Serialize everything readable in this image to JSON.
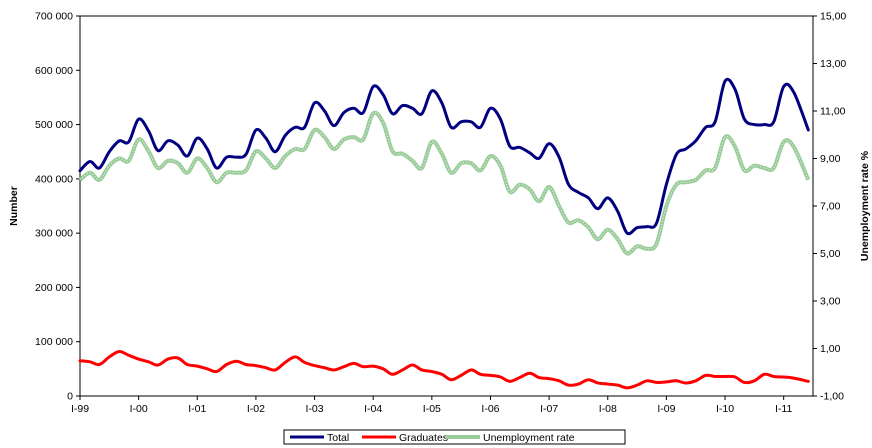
{
  "chart_data": {
    "type": "line",
    "ylabel": "Number",
    "y2label": "Unemployment rate %",
    "ylim": [
      0,
      700000
    ],
    "y2lim": [
      -1,
      15
    ],
    "x_start": 1999.0,
    "x_end": 2011.5,
    "left_ticks": [
      {
        "value": 0,
        "label": "0"
      },
      {
        "value": 100000,
        "label": "100 000"
      },
      {
        "value": 200000,
        "label": "200 000"
      },
      {
        "value": 300000,
        "label": "300 000"
      },
      {
        "value": 400000,
        "label": "400 000"
      },
      {
        "value": 500000,
        "label": "500 000"
      },
      {
        "value": 600000,
        "label": "600 000"
      },
      {
        "value": 700000,
        "label": "700 000"
      }
    ],
    "right_ticks": [
      {
        "value": -1,
        "label": "-1,00"
      },
      {
        "value": 1,
        "label": "1,00"
      },
      {
        "value": 3,
        "label": "3,00"
      },
      {
        "value": 5,
        "label": "5,00"
      },
      {
        "value": 7,
        "label": "7,00"
      },
      {
        "value": 9,
        "label": "9,00"
      },
      {
        "value": 11,
        "label": "11,00"
      },
      {
        "value": 13,
        "label": "13,00"
      },
      {
        "value": 15,
        "label": "15,00"
      }
    ],
    "x_ticks": [
      {
        "value": 1999,
        "label": "I-99"
      },
      {
        "value": 2000,
        "label": "I-00"
      },
      {
        "value": 2001,
        "label": "I-01"
      },
      {
        "value": 2002,
        "label": "I-02"
      },
      {
        "value": 2003,
        "label": "I-03"
      },
      {
        "value": 2004,
        "label": "I-04"
      },
      {
        "value": 2005,
        "label": "I-05"
      },
      {
        "value": 2006,
        "label": "I-06"
      },
      {
        "value": 2007,
        "label": "I-07"
      },
      {
        "value": 2008,
        "label": "I-08"
      },
      {
        "value": 2009,
        "label": "I-09"
      },
      {
        "value": 2010,
        "label": "I-10"
      },
      {
        "value": 2011,
        "label": "I-11"
      }
    ],
    "legend": {
      "placement": "bottom"
    },
    "series": [
      {
        "name": "Total",
        "axis": "left",
        "color": "#000080",
        "points": [
          [
            1999.0,
            415000
          ],
          [
            1999.17,
            432000
          ],
          [
            1999.33,
            420000
          ],
          [
            1999.5,
            450000
          ],
          [
            1999.67,
            470000
          ],
          [
            1999.83,
            468000
          ],
          [
            2000.0,
            510000
          ],
          [
            2000.17,
            488000
          ],
          [
            2000.33,
            452000
          ],
          [
            2000.5,
            470000
          ],
          [
            2000.67,
            462000
          ],
          [
            2000.83,
            442000
          ],
          [
            2001.0,
            475000
          ],
          [
            2001.17,
            455000
          ],
          [
            2001.33,
            420000
          ],
          [
            2001.5,
            440000
          ],
          [
            2001.67,
            440000
          ],
          [
            2001.83,
            445000
          ],
          [
            2002.0,
            490000
          ],
          [
            2002.17,
            475000
          ],
          [
            2002.33,
            450000
          ],
          [
            2002.5,
            480000
          ],
          [
            2002.67,
            495000
          ],
          [
            2002.83,
            495000
          ],
          [
            2003.0,
            540000
          ],
          [
            2003.17,
            525000
          ],
          [
            2003.33,
            498000
          ],
          [
            2003.5,
            522000
          ],
          [
            2003.67,
            530000
          ],
          [
            2003.83,
            522000
          ],
          [
            2004.0,
            570000
          ],
          [
            2004.17,
            555000
          ],
          [
            2004.33,
            520000
          ],
          [
            2004.5,
            535000
          ],
          [
            2004.67,
            530000
          ],
          [
            2004.83,
            520000
          ],
          [
            2005.0,
            562000
          ],
          [
            2005.17,
            540000
          ],
          [
            2005.33,
            495000
          ],
          [
            2005.5,
            505000
          ],
          [
            2005.67,
            505000
          ],
          [
            2005.83,
            495000
          ],
          [
            2006.0,
            530000
          ],
          [
            2006.17,
            510000
          ],
          [
            2006.33,
            460000
          ],
          [
            2006.5,
            458000
          ],
          [
            2006.67,
            448000
          ],
          [
            2006.83,
            438000
          ],
          [
            2007.0,
            465000
          ],
          [
            2007.17,
            440000
          ],
          [
            2007.33,
            390000
          ],
          [
            2007.5,
            375000
          ],
          [
            2007.67,
            365000
          ],
          [
            2007.83,
            345000
          ],
          [
            2008.0,
            365000
          ],
          [
            2008.17,
            340000
          ],
          [
            2008.33,
            300000
          ],
          [
            2008.5,
            310000
          ],
          [
            2008.67,
            312000
          ],
          [
            2008.83,
            318000
          ],
          [
            2009.0,
            390000
          ],
          [
            2009.17,
            445000
          ],
          [
            2009.33,
            455000
          ],
          [
            2009.5,
            470000
          ],
          [
            2009.67,
            495000
          ],
          [
            2009.83,
            505000
          ],
          [
            2010.0,
            580000
          ],
          [
            2010.17,
            565000
          ],
          [
            2010.33,
            510000
          ],
          [
            2010.5,
            500000
          ],
          [
            2010.67,
            500000
          ],
          [
            2010.83,
            505000
          ],
          [
            2011.0,
            570000
          ],
          [
            2011.17,
            560000
          ],
          [
            2011.42,
            490000
          ]
        ]
      },
      {
        "name": "Graduates",
        "axis": "left",
        "color": "#ff0000",
        "points": [
          [
            1999.0,
            65000
          ],
          [
            1999.17,
            63000
          ],
          [
            1999.33,
            58000
          ],
          [
            1999.5,
            72000
          ],
          [
            1999.67,
            82000
          ],
          [
            1999.83,
            75000
          ],
          [
            2000.0,
            68000
          ],
          [
            2000.17,
            63000
          ],
          [
            2000.33,
            57000
          ],
          [
            2000.5,
            68000
          ],
          [
            2000.67,
            70000
          ],
          [
            2000.83,
            58000
          ],
          [
            2001.0,
            55000
          ],
          [
            2001.17,
            50000
          ],
          [
            2001.33,
            45000
          ],
          [
            2001.5,
            58000
          ],
          [
            2001.67,
            64000
          ],
          [
            2001.83,
            58000
          ],
          [
            2002.0,
            56000
          ],
          [
            2002.17,
            52000
          ],
          [
            2002.33,
            48000
          ],
          [
            2002.5,
            62000
          ],
          [
            2002.67,
            72000
          ],
          [
            2002.83,
            62000
          ],
          [
            2003.0,
            56000
          ],
          [
            2003.17,
            52000
          ],
          [
            2003.33,
            48000
          ],
          [
            2003.5,
            54000
          ],
          [
            2003.67,
            60000
          ],
          [
            2003.83,
            54000
          ],
          [
            2004.0,
            55000
          ],
          [
            2004.17,
            50000
          ],
          [
            2004.33,
            40000
          ],
          [
            2004.5,
            48000
          ],
          [
            2004.67,
            57000
          ],
          [
            2004.83,
            48000
          ],
          [
            2005.0,
            45000
          ],
          [
            2005.17,
            40000
          ],
          [
            2005.33,
            30000
          ],
          [
            2005.5,
            38000
          ],
          [
            2005.67,
            48000
          ],
          [
            2005.83,
            40000
          ],
          [
            2006.0,
            38000
          ],
          [
            2006.17,
            35000
          ],
          [
            2006.33,
            27000
          ],
          [
            2006.5,
            34000
          ],
          [
            2006.67,
            42000
          ],
          [
            2006.83,
            34000
          ],
          [
            2007.0,
            32000
          ],
          [
            2007.17,
            28000
          ],
          [
            2007.33,
            20000
          ],
          [
            2007.5,
            22000
          ],
          [
            2007.67,
            30000
          ],
          [
            2007.83,
            24000
          ],
          [
            2008.0,
            22000
          ],
          [
            2008.17,
            20000
          ],
          [
            2008.33,
            15000
          ],
          [
            2008.5,
            20000
          ],
          [
            2008.67,
            28000
          ],
          [
            2008.83,
            25000
          ],
          [
            2009.0,
            26000
          ],
          [
            2009.17,
            28000
          ],
          [
            2009.33,
            24000
          ],
          [
            2009.5,
            28000
          ],
          [
            2009.67,
            38000
          ],
          [
            2009.83,
            36000
          ],
          [
            2010.0,
            36000
          ],
          [
            2010.17,
            35000
          ],
          [
            2010.33,
            25000
          ],
          [
            2010.5,
            28000
          ],
          [
            2010.67,
            40000
          ],
          [
            2010.83,
            36000
          ],
          [
            2011.0,
            35000
          ],
          [
            2011.17,
            33000
          ],
          [
            2011.42,
            27000
          ]
        ]
      },
      {
        "name": "Unemployment rate",
        "axis": "right",
        "color": "#99cc99",
        "points": [
          [
            1999.0,
            8.1
          ],
          [
            1999.17,
            8.4
          ],
          [
            1999.33,
            8.1
          ],
          [
            1999.5,
            8.7
          ],
          [
            1999.67,
            9.0
          ],
          [
            1999.83,
            8.9
          ],
          [
            2000.0,
            9.8
          ],
          [
            2000.17,
            9.3
          ],
          [
            2000.33,
            8.6
          ],
          [
            2000.5,
            8.9
          ],
          [
            2000.67,
            8.8
          ],
          [
            2000.83,
            8.4
          ],
          [
            2001.0,
            9.0
          ],
          [
            2001.17,
            8.6
          ],
          [
            2001.33,
            8.0
          ],
          [
            2001.5,
            8.4
          ],
          [
            2001.67,
            8.4
          ],
          [
            2001.83,
            8.5
          ],
          [
            2002.0,
            9.3
          ],
          [
            2002.17,
            9.0
          ],
          [
            2002.33,
            8.6
          ],
          [
            2002.5,
            9.1
          ],
          [
            2002.67,
            9.4
          ],
          [
            2002.83,
            9.4
          ],
          [
            2003.0,
            10.2
          ],
          [
            2003.17,
            9.9
          ],
          [
            2003.33,
            9.4
          ],
          [
            2003.5,
            9.8
          ],
          [
            2003.67,
            9.9
          ],
          [
            2003.83,
            9.8
          ],
          [
            2004.0,
            10.9
          ],
          [
            2004.17,
            10.5
          ],
          [
            2004.33,
            9.3
          ],
          [
            2004.5,
            9.2
          ],
          [
            2004.67,
            8.9
          ],
          [
            2004.83,
            8.6
          ],
          [
            2005.0,
            9.7
          ],
          [
            2005.17,
            9.2
          ],
          [
            2005.33,
            8.4
          ],
          [
            2005.5,
            8.8
          ],
          [
            2005.67,
            8.8
          ],
          [
            2005.83,
            8.5
          ],
          [
            2006.0,
            9.1
          ],
          [
            2006.17,
            8.7
          ],
          [
            2006.33,
            7.6
          ],
          [
            2006.5,
            7.9
          ],
          [
            2006.67,
            7.7
          ],
          [
            2006.83,
            7.2
          ],
          [
            2007.0,
            7.8
          ],
          [
            2007.17,
            7.0
          ],
          [
            2007.33,
            6.3
          ],
          [
            2007.5,
            6.4
          ],
          [
            2007.67,
            6.1
          ],
          [
            2007.83,
            5.6
          ],
          [
            2008.0,
            6.0
          ],
          [
            2008.17,
            5.6
          ],
          [
            2008.33,
            5.0
          ],
          [
            2008.5,
            5.3
          ],
          [
            2008.67,
            5.2
          ],
          [
            2008.83,
            5.4
          ],
          [
            2009.0,
            7.0
          ],
          [
            2009.17,
            7.9
          ],
          [
            2009.33,
            8.0
          ],
          [
            2009.5,
            8.1
          ],
          [
            2009.67,
            8.5
          ],
          [
            2009.83,
            8.6
          ],
          [
            2010.0,
            9.9
          ],
          [
            2010.17,
            9.5
          ],
          [
            2010.33,
            8.5
          ],
          [
            2010.5,
            8.7
          ],
          [
            2010.67,
            8.6
          ],
          [
            2010.83,
            8.6
          ],
          [
            2011.0,
            9.7
          ],
          [
            2011.17,
            9.5
          ],
          [
            2011.42,
            8.1
          ]
        ]
      }
    ]
  }
}
